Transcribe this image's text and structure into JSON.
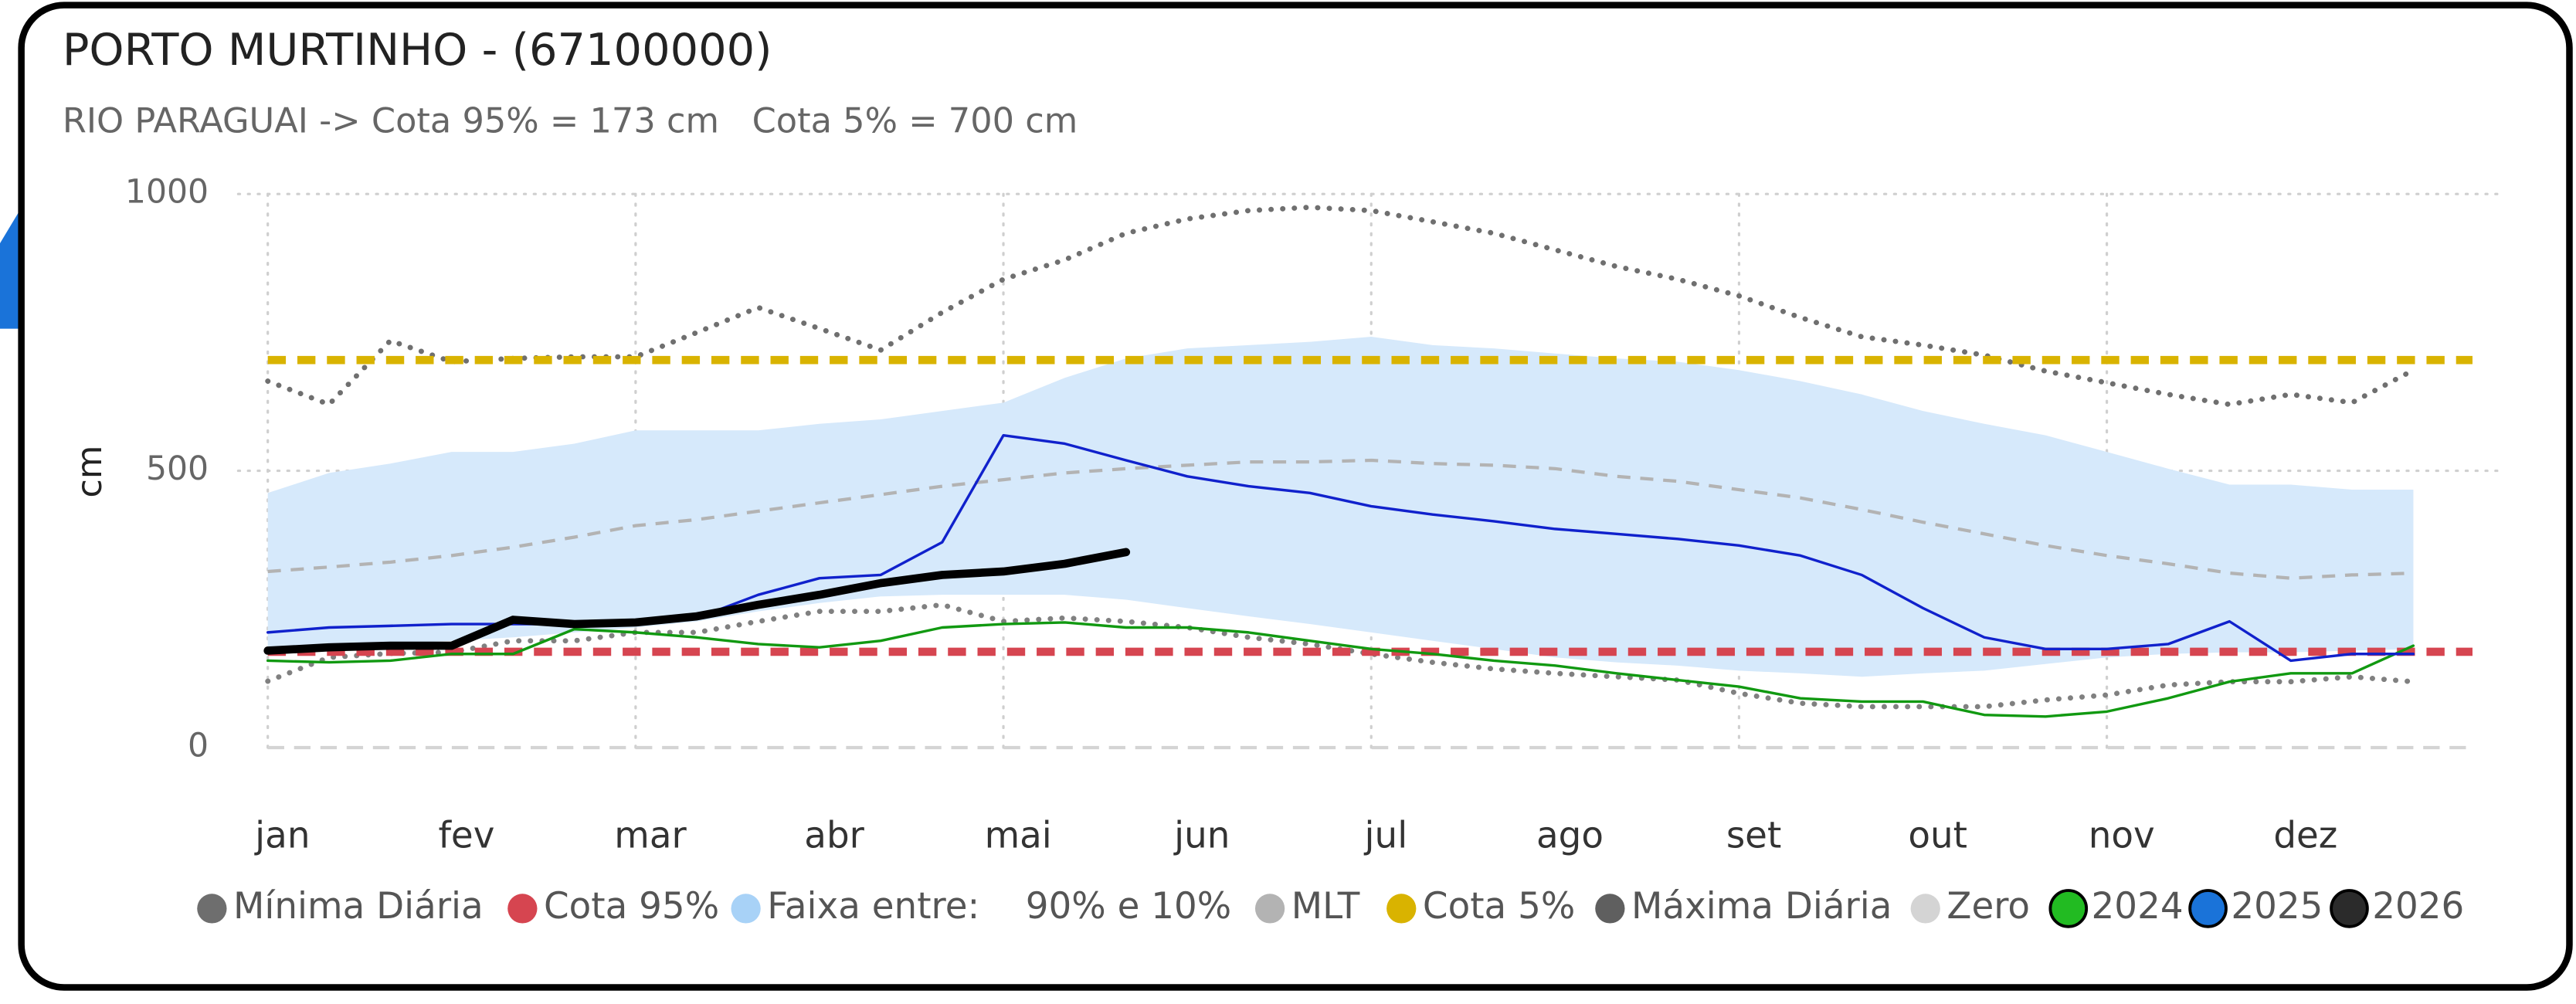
{
  "chart_data": {
    "type": "line",
    "title": "PORTO MURTINHO - (67100000)",
    "subtitle": "RIO PARAGUAI -> Cota 95% = 173 cm   Cota 5% = 700 cm",
    "y_label": "cm",
    "categories": [
      "jan",
      null,
      null,
      "fev",
      null,
      null,
      "mar",
      null,
      null,
      "abr",
      null,
      null,
      "mai",
      null,
      null,
      "jun",
      null,
      null,
      "jul",
      null,
      null,
      "ago",
      null,
      null,
      "set",
      null,
      null,
      "out",
      null,
      null,
      "nov",
      null,
      null,
      "dez",
      null,
      null
    ],
    "ylim": [
      0,
      1000
    ],
    "yticks": [
      0,
      500,
      1000
    ],
    "grid": true,
    "series": [
      {
        "name": "Mínima Diária",
        "kind": "dotted",
        "color": "#808080",
        "legend_color": "#6e6e6e",
        "values": [
          120,
          163,
          170,
          172,
          193,
          193,
          208,
          208,
          228,
          246,
          246,
          258,
          228,
          234,
          228,
          217,
          199,
          187,
          169,
          154,
          142,
          134,
          128,
          122,
          98,
          80,
          74,
          74,
          74,
          86,
          95,
          113,
          119,
          119,
          128,
          119
        ]
      },
      {
        "name": "Cota 95%",
        "kind": "hline",
        "color": "#d64550",
        "value": 173
      },
      {
        "name": "Faixa entre:    90% e 10%",
        "kind": "band",
        "color": "#d6e9fb",
        "legend_color": "#a8d2f7",
        "upper": [
          460,
          496,
          513,
          534,
          534,
          549,
          573,
          573,
          573,
          585,
          593,
          608,
          623,
          668,
          703,
          721,
          727,
          733,
          742,
          727,
          721,
          712,
          703,
          697,
          682,
          662,
          638,
          608,
          585,
          564,
          534,
          504,
          475,
          475,
          466,
          466
        ],
        "lower": [
          178,
          184,
          187,
          193,
          199,
          208,
          217,
          228,
          246,
          261,
          273,
          276,
          276,
          276,
          267,
          252,
          237,
          223,
          208,
          193,
          178,
          163,
          154,
          148,
          139,
          134,
          128,
          134,
          139,
          151,
          163,
          169,
          172,
          172,
          175,
          178
        ]
      },
      {
        "name": "MLT",
        "kind": "dashed",
        "color": "#b3b3b3",
        "values": [
          318,
          326,
          335,
          347,
          362,
          380,
          401,
          412,
          427,
          442,
          457,
          472,
          484,
          496,
          504,
          510,
          516,
          516,
          519,
          513,
          510,
          504,
          490,
          481,
          466,
          451,
          430,
          407,
          386,
          365,
          347,
          332,
          315,
          306,
          312,
          315
        ]
      },
      {
        "name": "Cota 5%",
        "kind": "hline",
        "color": "#d9b300",
        "value": 700
      },
      {
        "name": "Máxima Diária",
        "kind": "dotted",
        "color": "#6f6f6f",
        "legend_color": "#5f5f5f",
        "values": [
          662,
          620,
          735,
          697,
          703,
          706,
          706,
          750,
          795,
          757,
          718,
          786,
          846,
          881,
          929,
          955,
          970,
          976,
          970,
          950,
          929,
          899,
          869,
          846,
          816,
          777,
          742,
          727,
          709,
          680,
          659,
          638,
          620,
          638,
          623,
          682
        ]
      },
      {
        "name": "Zero",
        "kind": "hline",
        "color": "#d4d4d4",
        "value": 0
      },
      {
        "name": "2024",
        "kind": "year",
        "color": "#119911",
        "legend_color": "#22bb22",
        "values": [
          157,
          154,
          157,
          169,
          169,
          214,
          208,
          199,
          187,
          181,
          193,
          217,
          223,
          226,
          217,
          217,
          208,
          193,
          178,
          169,
          157,
          148,
          134,
          122,
          110,
          89,
          83,
          83,
          59,
          56,
          65,
          89,
          119,
          134,
          134,
          184
        ]
      },
      {
        "name": "2025",
        "kind": "year",
        "color": "#1021cc",
        "legend_color": "#1a73d9",
        "values": [
          208,
          217,
          220,
          223,
          223,
          223,
          223,
          234,
          276,
          306,
          312,
          371,
          564,
          549,
          519,
          490,
          472,
          460,
          436,
          421,
          409,
          395,
          386,
          377,
          365,
          347,
          312,
          252,
          199,
          178,
          178,
          187,
          228,
          157,
          169,
          169
        ]
      },
      {
        "name": "2026",
        "kind": "year",
        "color": "#000000",
        "legend_color": "#2b2b2b",
        "width": 5,
        "values": [
          175,
          181,
          184,
          184,
          231,
          223,
          226,
          237,
          258,
          276,
          297,
          312,
          318,
          332,
          353,
          null,
          null,
          null,
          null,
          null,
          null,
          null,
          null,
          null,
          null,
          null,
          null,
          null,
          null,
          null,
          null,
          null,
          null,
          null,
          null,
          null
        ]
      }
    ]
  }
}
